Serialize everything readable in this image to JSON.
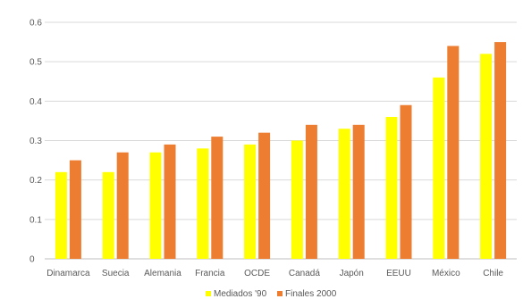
{
  "chart_data": {
    "type": "bar",
    "categories": [
      "Dinamarca",
      "Suecia",
      "Alemania",
      "Francia",
      "OCDE",
      "Canadá",
      "Japón",
      "EEUU",
      "México",
      "Chile"
    ],
    "series": [
      {
        "name": "Mediados '90",
        "color": "#FFFF00",
        "values": [
          0.22,
          0.22,
          0.27,
          0.28,
          0.29,
          0.3,
          0.33,
          0.36,
          0.46,
          0.52
        ]
      },
      {
        "name": "Finales 2000",
        "color": "#ED7D31",
        "values": [
          0.25,
          0.27,
          0.29,
          0.31,
          0.32,
          0.34,
          0.34,
          0.39,
          0.54,
          0.55
        ]
      }
    ],
    "yticks": [
      "0",
      "0.1",
      "0.2",
      "0.3",
      "0.4",
      "0.5",
      "0.6"
    ],
    "ylim": [
      0,
      0.6
    ],
    "grid": true,
    "legend_position": "bottom",
    "title": "",
    "xlabel": "",
    "ylabel": "",
    "colors": {
      "grid": "#D9D9D9",
      "axis": "#BFBFBF",
      "text": "#595959"
    }
  }
}
